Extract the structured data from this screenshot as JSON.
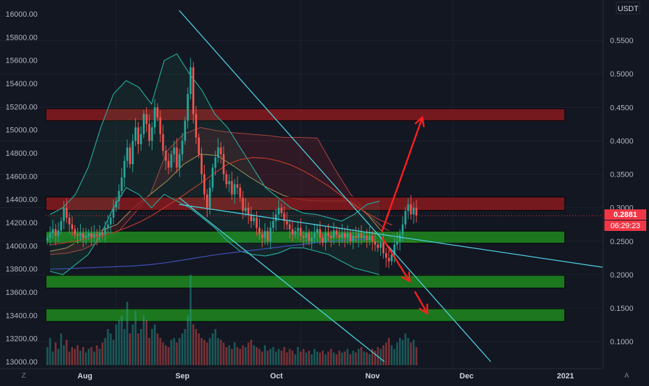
{
  "chart_data": {
    "type": "candlestick",
    "left_axis": {
      "ticks": [
        "16000.00",
        "15800.00",
        "15600.00",
        "15400.00",
        "15200.00",
        "15000.00",
        "14800.00",
        "14600.00",
        "14400.00",
        "14200.00",
        "14000.00",
        "13800.00",
        "13600.00",
        "13400.00",
        "13200.00",
        "13000.00"
      ],
      "ylim": [
        13000,
        16000
      ]
    },
    "right_axis": {
      "unit": "USDT",
      "ticks": [
        "0.5500",
        "0.5000",
        "0.4500",
        "0.4000",
        "0.3500",
        "0.3000",
        "0.2500",
        "0.2000",
        "0.1500",
        "0.1000"
      ],
      "ylim": [
        0.07,
        0.6
      ]
    },
    "x_ticks": [
      "Aug",
      "Sep",
      "Oct",
      "Nov",
      "Dec",
      "2021"
    ],
    "last_price": "0.2881",
    "countdown": "06:29:23",
    "zones": [
      {
        "kind": "resistance",
        "low": 0.43,
        "high": 0.448,
        "color": "#8b1a1f"
      },
      {
        "kind": "resistance",
        "low": 0.296,
        "high": 0.316,
        "color": "#8b1a1f"
      },
      {
        "kind": "support",
        "low": 0.247,
        "high": 0.265,
        "color": "#1e8c1e"
      },
      {
        "kind": "support",
        "low": 0.18,
        "high": 0.199,
        "color": "#1e8c1e"
      },
      {
        "kind": "support",
        "low": 0.13,
        "high": 0.149,
        "color": "#1e8c1e"
      }
    ],
    "closes": [
      0.255,
      0.262,
      0.268,
      0.258,
      0.266,
      0.28,
      0.3,
      0.285,
      0.275,
      0.268,
      0.26,
      0.258,
      0.262,
      0.255,
      0.258,
      0.262,
      0.256,
      0.26,
      0.258,
      0.262,
      0.26,
      0.27,
      0.275,
      0.285,
      0.3,
      0.31,
      0.325,
      0.345,
      0.37,
      0.39,
      0.365,
      0.4,
      0.42,
      0.395,
      0.41,
      0.44,
      0.425,
      0.4,
      0.42,
      0.45,
      0.435,
      0.41,
      0.385,
      0.37,
      0.36,
      0.38,
      0.39,
      0.36,
      0.38,
      0.4,
      0.43,
      0.47,
      0.51,
      0.44,
      0.405,
      0.38,
      0.35,
      0.32,
      0.3,
      0.33,
      0.36,
      0.375,
      0.39,
      0.38,
      0.35,
      0.335,
      0.34,
      0.32,
      0.335,
      0.33,
      0.315,
      0.295,
      0.3,
      0.29,
      0.28,
      0.285,
      0.27,
      0.26,
      0.255,
      0.265,
      0.25,
      0.27,
      0.28,
      0.29,
      0.3,
      0.292,
      0.28,
      0.275,
      0.268,
      0.26,
      0.265,
      0.27,
      0.258,
      0.255,
      0.262,
      0.25,
      0.255,
      0.262,
      0.268,
      0.255,
      0.248,
      0.262,
      0.258,
      0.255,
      0.266,
      0.26,
      0.255,
      0.262,
      0.255,
      0.262,
      0.25,
      0.258,
      0.255,
      0.262,
      0.255,
      0.258,
      0.252,
      0.258,
      0.25,
      0.245,
      0.24,
      0.248,
      0.232,
      0.225,
      0.22,
      0.23,
      0.245,
      0.25,
      0.26,
      0.275,
      0.295,
      0.305,
      0.29,
      0.3,
      0.288
    ],
    "indicators": {
      "ma_red": [
        0.245,
        0.247,
        0.25,
        0.254,
        0.258,
        0.263,
        0.27,
        0.278,
        0.288,
        0.3,
        0.312,
        0.325,
        0.338,
        0.352,
        0.365,
        0.372,
        0.375,
        0.374,
        0.37,
        0.364,
        0.355,
        0.344,
        0.332,
        0.318,
        0.304,
        0.292,
        0.282,
        0.274
      ],
      "ma_blue": [
        0.208,
        0.209,
        0.21,
        0.211,
        0.212,
        0.213,
        0.215,
        0.218,
        0.222,
        0.226,
        0.23,
        0.233,
        0.236,
        0.239,
        0.242,
        0.245,
        0.248,
        0.25,
        0.252,
        0.253
      ],
      "band_upper": [
        0.29,
        0.3,
        0.32,
        0.36,
        0.42,
        0.47,
        0.49,
        0.48,
        0.455,
        0.52,
        0.53,
        0.5,
        0.475,
        0.44,
        0.42,
        0.39,
        0.36,
        0.33,
        0.315,
        0.3,
        0.292,
        0.29,
        0.285,
        0.28,
        0.29,
        0.305,
        0.31
      ],
      "band_lower": [
        0.205,
        0.2,
        0.215,
        0.23,
        0.26,
        0.3,
        0.33,
        0.32,
        0.3,
        0.32,
        0.31,
        0.3,
        0.285,
        0.27,
        0.25,
        0.235,
        0.23,
        0.228,
        0.232,
        0.24,
        0.24,
        0.235,
        0.23,
        0.22,
        0.21,
        0.205,
        0.2
      ],
      "cloud_a": [
        0.235,
        0.24,
        0.255,
        0.265,
        0.275,
        0.3,
        0.32,
        0.34,
        0.365,
        0.38,
        0.378,
        0.362,
        0.345,
        0.33,
        0.318,
        0.312,
        0.31,
        0.31,
        0.31,
        0.29,
        0.26,
        0.25,
        0.248
      ],
      "cloud_b": [
        0.23,
        0.232,
        0.238,
        0.25,
        0.262,
        0.29,
        0.32,
        0.385,
        0.41,
        0.42,
        0.415,
        0.412,
        0.41,
        0.408,
        0.405,
        0.405,
        0.404,
        0.36,
        0.32,
        0.29,
        0.27,
        0.255,
        0.248
      ]
    },
    "volumes": [
      0.2,
      0.3,
      0.15,
      0.25,
      0.18,
      0.35,
      0.22,
      0.28,
      0.15,
      0.2,
      0.18,
      0.22,
      0.16,
      0.2,
      0.14,
      0.18,
      0.2,
      0.15,
      0.22,
      0.18,
      0.25,
      0.3,
      0.4,
      0.35,
      0.28,
      0.45,
      0.5,
      0.55,
      0.4,
      0.7,
      0.35,
      0.45,
      0.6,
      0.35,
      0.4,
      0.55,
      0.5,
      0.3,
      0.4,
      0.45,
      0.35,
      0.3,
      0.25,
      0.22,
      0.2,
      0.28,
      0.3,
      0.25,
      0.3,
      0.35,
      0.4,
      0.55,
      1.0,
      0.45,
      0.4,
      0.35,
      0.3,
      0.28,
      0.25,
      0.3,
      0.35,
      0.4,
      0.3,
      0.28,
      0.25,
      0.2,
      0.22,
      0.18,
      0.25,
      0.2,
      0.18,
      0.22,
      0.2,
      0.25,
      0.28,
      0.22,
      0.2,
      0.18,
      0.15,
      0.22,
      0.16,
      0.18,
      0.2,
      0.15,
      0.18,
      0.16,
      0.2,
      0.14,
      0.18,
      0.16,
      0.12,
      0.2,
      0.15,
      0.18,
      0.14,
      0.16,
      0.12,
      0.18,
      0.15,
      0.14,
      0.16,
      0.12,
      0.15,
      0.18,
      0.14,
      0.12,
      0.16,
      0.14,
      0.15,
      0.18,
      0.12,
      0.16,
      0.14,
      0.18,
      0.2,
      0.15,
      0.14,
      0.12,
      0.18,
      0.16,
      0.2,
      0.18,
      0.22,
      0.25,
      0.3,
      0.22,
      0.18,
      0.25,
      0.3,
      0.28,
      0.35,
      0.3,
      0.25,
      0.28,
      0.2
    ],
    "trendlines": [
      {
        "kind": "descending",
        "from": {
          "bar": 52,
          "price": 0.595
        },
        "to": {
          "bar": 175,
          "price": 0.07
        }
      },
      {
        "kind": "descending",
        "from": {
          "bar": 52,
          "price": 0.315
        },
        "to": {
          "bar": 133,
          "price": 0.07
        }
      },
      {
        "kind": "support",
        "from": {
          "bar": 52,
          "price": 0.305
        },
        "to": {
          "bar": 262,
          "price": 0.187
        }
      }
    ],
    "arrows": [
      {
        "from": {
          "bar": 132,
          "price": 0.264
        },
        "to": {
          "bar": 148,
          "price": 0.435
        }
      },
      {
        "from": {
          "bar": 132,
          "price": 0.256
        },
        "to": {
          "bar": 143,
          "price": 0.19
        }
      },
      {
        "from": {
          "bar": 145,
          "price": 0.175
        },
        "to": {
          "bar": 150,
          "price": 0.142
        }
      }
    ]
  },
  "toolbar": {
    "z_label": "Z",
    "a_label": "A"
  }
}
